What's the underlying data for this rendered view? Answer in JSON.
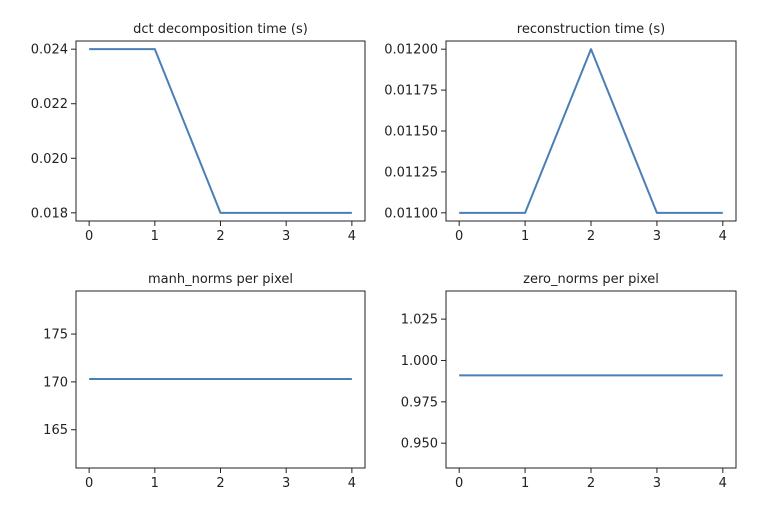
{
  "chart_data": [
    {
      "type": "line",
      "title": "dct decomposition time (s)",
      "xlabel": "",
      "ylabel": "",
      "x": [
        0,
        1,
        2,
        3,
        4
      ],
      "series": [
        {
          "values": [
            0.024,
            0.024,
            0.018,
            0.018,
            0.018
          ]
        }
      ],
      "xlim": [
        -0.2,
        4.2
      ],
      "ylim": [
        0.0177,
        0.0243
      ],
      "xticks": [
        0,
        1,
        2,
        3,
        4
      ],
      "yticks": [
        0.018,
        0.02,
        0.022,
        0.024
      ],
      "ytick_labels": [
        "0.018",
        "0.020",
        "0.022",
        "0.024"
      ],
      "grid": false,
      "line_color": "#4a7fb5"
    },
    {
      "type": "line",
      "title": "reconstruction time (s)",
      "xlabel": "",
      "ylabel": "",
      "x": [
        0,
        1,
        2,
        3,
        4
      ],
      "series": [
        {
          "values": [
            0.011,
            0.011,
            0.012,
            0.011,
            0.011
          ]
        }
      ],
      "xlim": [
        -0.2,
        4.2
      ],
      "ylim": [
        0.01095,
        0.01205
      ],
      "xticks": [
        0,
        1,
        2,
        3,
        4
      ],
      "yticks": [
        0.011,
        0.01125,
        0.0115,
        0.01175,
        0.012
      ],
      "ytick_labels": [
        "0.01100",
        "0.01125",
        "0.01150",
        "0.01175",
        "0.01200"
      ],
      "grid": false,
      "line_color": "#4a7fb5"
    },
    {
      "type": "line",
      "title": "manh_norms per pixel",
      "xlabel": "",
      "ylabel": "",
      "x": [
        0,
        1,
        2,
        3,
        4
      ],
      "series": [
        {
          "values": [
            170.3,
            170.3,
            170.3,
            170.3,
            170.3
          ]
        }
      ],
      "xlim": [
        -0.2,
        4.2
      ],
      "ylim": [
        161,
        179.5
      ],
      "xticks": [
        0,
        1,
        2,
        3,
        4
      ],
      "yticks": [
        165,
        170,
        175
      ],
      "ytick_labels": [
        "165",
        "170",
        "175"
      ],
      "grid": false,
      "line_color": "#4a7fb5"
    },
    {
      "type": "line",
      "title": "zero_norms per pixel",
      "xlabel": "",
      "ylabel": "",
      "x": [
        0,
        1,
        2,
        3,
        4
      ],
      "series": [
        {
          "values": [
            0.991,
            0.991,
            0.991,
            0.991,
            0.991
          ]
        }
      ],
      "xlim": [
        -0.2,
        4.2
      ],
      "ylim": [
        0.935,
        1.042
      ],
      "xticks": [
        0,
        1,
        2,
        3,
        4
      ],
      "yticks": [
        0.95,
        0.975,
        1.0,
        1.025
      ],
      "ytick_labels": [
        "0.950",
        "0.975",
        "1.000",
        "1.025"
      ],
      "grid": false,
      "line_color": "#4a7fb5"
    }
  ]
}
